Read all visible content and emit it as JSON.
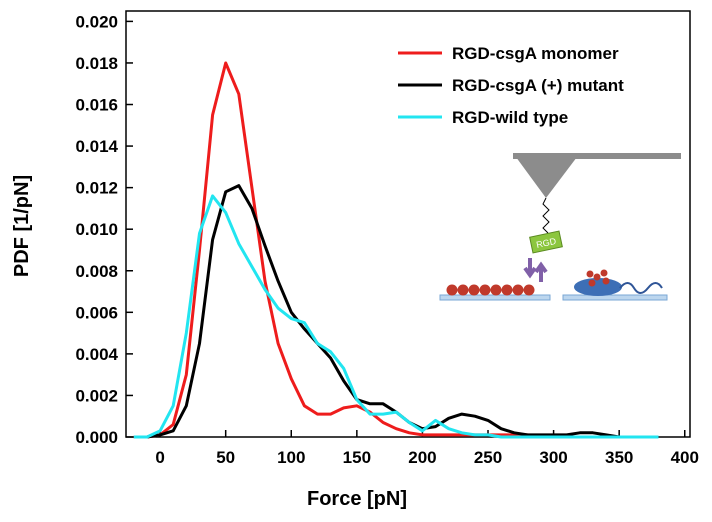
{
  "chart_data": {
    "type": "line",
    "x_label": "Force [pN]",
    "y_label": "PDF [1/pN]",
    "x": [
      -20,
      -10,
      0,
      10,
      20,
      30,
      40,
      50,
      60,
      70,
      80,
      90,
      100,
      110,
      120,
      130,
      140,
      150,
      160,
      170,
      180,
      190,
      200,
      210,
      220,
      230,
      240,
      250,
      260,
      270,
      280,
      290,
      300,
      310,
      320,
      330,
      340,
      350,
      360,
      370,
      380
    ],
    "series": [
      {
        "name": "RGD-csgA monomer",
        "color": "#ee1c1c",
        "values": [
          0,
          0,
          0.0001,
          0.0006,
          0.003,
          0.009,
          0.0155,
          0.018,
          0.0165,
          0.012,
          0.0075,
          0.0045,
          0.0028,
          0.0015,
          0.0011,
          0.0011,
          0.0014,
          0.0015,
          0.0012,
          0.0007,
          0.0004,
          0.0002,
          0.0001,
          0.0001,
          0.0001,
          0.0001,
          0.0001,
          0.0001,
          0.0001,
          0.0001,
          0.0001,
          0,
          0,
          0,
          0,
          0,
          0,
          0,
          0,
          0,
          0
        ]
      },
      {
        "name": "RGD-csgA (+) mutant",
        "color": "#000000",
        "values": [
          0,
          0,
          0.0001,
          0.0003,
          0.0015,
          0.0045,
          0.0095,
          0.0118,
          0.0121,
          0.011,
          0.0092,
          0.0075,
          0.006,
          0.0052,
          0.0045,
          0.0038,
          0.0027,
          0.0018,
          0.0016,
          0.0016,
          0.0012,
          0.0007,
          0.0004,
          0.0005,
          0.0009,
          0.0011,
          0.001,
          0.0008,
          0.0004,
          0.0002,
          0.0001,
          0.0001,
          0.0001,
          0.0001,
          0.0002,
          0.0002,
          0.0001,
          0,
          0,
          0,
          0
        ]
      },
      {
        "name": "RGD-wild type",
        "color": "#22e5f0",
        "values": [
          0,
          0,
          0.0003,
          0.0015,
          0.005,
          0.0098,
          0.0116,
          0.0108,
          0.0093,
          0.0082,
          0.0071,
          0.0062,
          0.0057,
          0.0055,
          0.0045,
          0.0041,
          0.0033,
          0.0018,
          0.0011,
          0.0011,
          0.0012,
          0.0007,
          0.0003,
          0.0008,
          0.0004,
          0.0002,
          0.0001,
          0.0001,
          0,
          0,
          0,
          0,
          0,
          0,
          0,
          0,
          0,
          0,
          0,
          0,
          0
        ]
      }
    ],
    "xlim": [
      -26,
      404
    ],
    "ylim": [
      0,
      0.0205
    ],
    "xticks": [
      0,
      50,
      100,
      150,
      200,
      250,
      300,
      350,
      400
    ],
    "yticks": [
      {
        "value": 0,
        "label": "0.000"
      },
      {
        "value": 0.002,
        "label": "0.002"
      },
      {
        "value": 0.004,
        "label": "0.004"
      },
      {
        "value": 0.006,
        "label": "0.006"
      },
      {
        "value": 0.008,
        "label": "0.008"
      },
      {
        "value": 0.01,
        "label": "0.010"
      },
      {
        "value": 0.012,
        "label": "0.012"
      },
      {
        "value": 0.014,
        "label": "0.014"
      },
      {
        "value": 0.016,
        "label": "0.016"
      },
      {
        "value": 0.018,
        "label": "0.018"
      },
      {
        "value": 0.02,
        "label": "0.020"
      }
    ],
    "legend": "upper right",
    "grid": false,
    "inset_label": "RGD"
  }
}
